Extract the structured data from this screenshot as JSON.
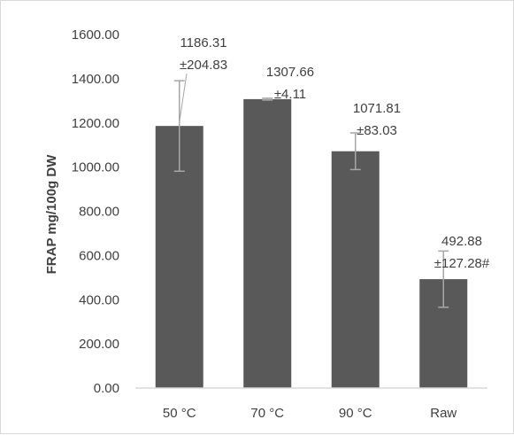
{
  "chart_data": {
    "type": "bar",
    "title": "",
    "xlabel": "",
    "ylabel": "FRAP mg/100g DW",
    "ylim": [
      0,
      1600
    ],
    "yticks": [
      "0.00",
      "200.00",
      "400.00",
      "600.00",
      "800.00",
      "1000.00",
      "1200.00",
      "1400.00",
      "1600.00"
    ],
    "categories": [
      "50 °C",
      "70 °C",
      "90 °C",
      "Raw"
    ],
    "values": [
      1186.31,
      1307.66,
      1071.81,
      492.88
    ],
    "errors": [
      204.83,
      4.11,
      83.03,
      127.28
    ],
    "data_labels": [
      [
        "1186.31",
        "±204.83"
      ],
      [
        "1307.66",
        "±4.11"
      ],
      [
        "1071.81",
        "±83.03"
      ],
      [
        "492.88",
        "±127.28#"
      ]
    ],
    "grid": false,
    "legend": "none",
    "bar_color": "#595959",
    "error_bar_color": "#a6a6a6",
    "axis_color": "#d9d9d9",
    "text_color": "#404040"
  }
}
